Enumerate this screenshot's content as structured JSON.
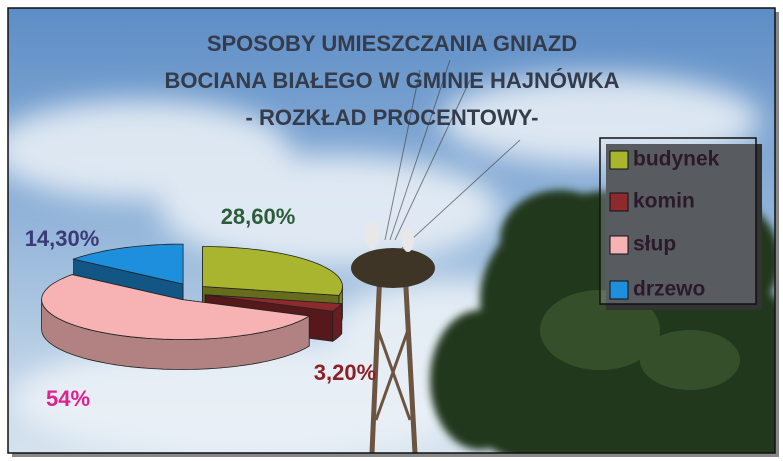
{
  "chart_data": {
    "type": "pie",
    "title": [
      "SPOSOBY UMIESZCZANIA GNIAZD",
      "BOCIANA BIAŁEGO W GMINIE HAJNÓWKA",
      "- ROZKŁAD PROCENTOWY-"
    ],
    "categories": [
      "budynek",
      "komin",
      "słup",
      "drzewo"
    ],
    "values": [
      28.6,
      3.2,
      54,
      14.3
    ],
    "value_labels": [
      "28,60%",
      "3,20%",
      "54%",
      "14,30%"
    ],
    "colors": [
      "#a9b52e",
      "#8e2a2e",
      "#f7b3b3",
      "#1d8fdc"
    ],
    "label_colors": [
      "#2c5c3a",
      "#8c2026",
      "#e0208c",
      "#3a3a78"
    ],
    "legend": "right"
  }
}
